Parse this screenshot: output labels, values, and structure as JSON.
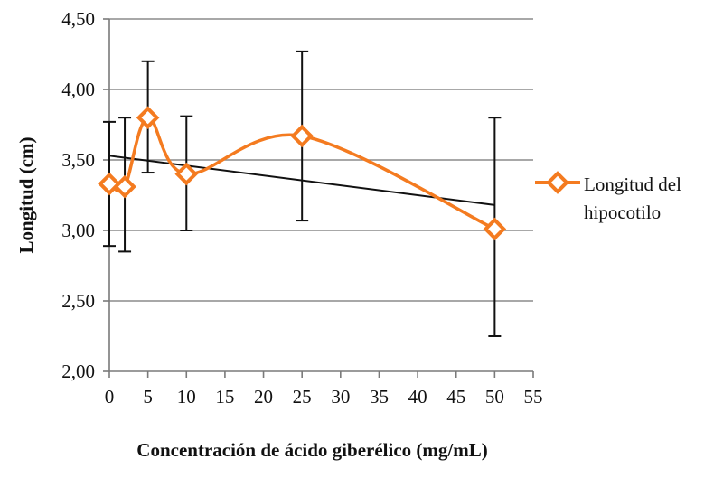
{
  "chart_data": {
    "type": "line",
    "title": "",
    "xlabel": "Concentración de ácido giberélico (mg/mL)",
    "ylabel": "Longitud (cm)",
    "xlim": [
      0,
      55
    ],
    "ylim": [
      2.0,
      4.5
    ],
    "x_ticks": [
      0,
      5,
      10,
      15,
      20,
      25,
      30,
      35,
      40,
      45,
      50,
      55
    ],
    "x_tick_labels": [
      "0",
      "5",
      "10",
      "15",
      "20",
      "25",
      "30",
      "35",
      "40",
      "45",
      "50",
      "55"
    ],
    "y_ticks": [
      2.0,
      2.5,
      3.0,
      3.5,
      4.0,
      4.5
    ],
    "y_tick_labels": [
      "2,00",
      "2,50",
      "3,00",
      "3,50",
      "4,00",
      "4,50"
    ],
    "grid": "horizontal",
    "legend_position": "right",
    "series": [
      {
        "name": "Longitud del hipocotilo",
        "color": "#F47B20",
        "marker": "diamond",
        "smooth": true,
        "x": [
          0,
          2,
          5,
          10,
          25,
          50
        ],
        "y": [
          3.33,
          3.31,
          3.8,
          3.4,
          3.67,
          3.01
        ],
        "error_low": [
          2.89,
          2.85,
          3.41,
          3.0,
          3.07,
          2.25
        ],
        "error_high": [
          3.77,
          3.8,
          4.2,
          3.81,
          4.27,
          3.8
        ]
      }
    ],
    "trendline": {
      "color": "#111111",
      "type": "linear",
      "x": [
        0,
        50
      ],
      "y": [
        3.53,
        3.18
      ]
    }
  }
}
